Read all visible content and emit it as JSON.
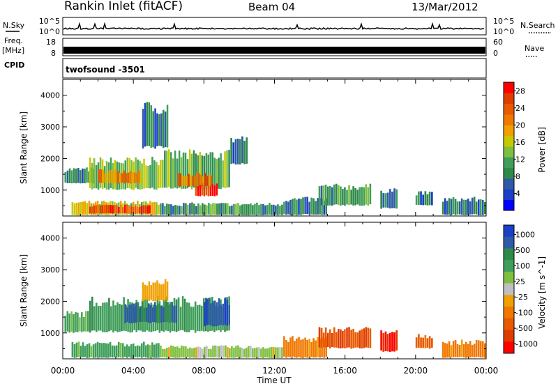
{
  "header": {
    "station": "Rankin Inlet (fitACF)",
    "beam": "Beam 04",
    "date": "13/Mar/2012"
  },
  "left_labels": {
    "nsky": "N.Sky",
    "freq": "Freq.",
    "mhz": "[MHz]",
    "cpid": "CPID"
  },
  "right_labels": {
    "nsearch": "N.Search",
    "nave": "Nave"
  },
  "cpid_text": "twofsound  -3501",
  "noise_panel": {
    "left_ticks": [
      "10^5",
      "10^0"
    ],
    "right_ticks": [
      "10^5",
      "10^0"
    ]
  },
  "freq_panel": {
    "left_ticks": [
      "18",
      "8"
    ],
    "right_ticks": [
      "60",
      "0"
    ]
  },
  "chart_data": [
    {
      "type": "heatmap",
      "name": "power",
      "xlabel": "Time UT",
      "ylabel": "Slant Range [km]",
      "xlim": [
        0,
        24
      ],
      "ylim": [
        180,
        4500
      ],
      "x_ticks": [
        "00:00",
        "04:00",
        "08:00",
        "12:00",
        "16:00",
        "20:00",
        "00:00"
      ],
      "y_ticks": [
        "1000",
        "2000",
        "3000",
        "4000"
      ],
      "colorbar": {
        "label": "Power [dB]",
        "ticks": [
          "4",
          "8",
          "12",
          "16",
          "20",
          "24",
          "28"
        ],
        "range": [
          0,
          30
        ],
        "colors": [
          "#0000ff",
          "#1a3fc8",
          "#2e5aa8",
          "#2f8a4a",
          "#3f9e5a",
          "#7fbf3f",
          "#c8c800",
          "#f0a000",
          "#f07800",
          "#e85a00",
          "#e03c00",
          "#ff0000"
        ]
      },
      "regions": [
        {
          "t0": 0.1,
          "t1": 1.8,
          "r0": 1200,
          "r1": 1650,
          "value": 8
        },
        {
          "t0": 1.5,
          "t1": 5.5,
          "r0": 1000,
          "r1": 1900,
          "value": 14
        },
        {
          "t0": 2.0,
          "t1": 4.5,
          "r0": 1200,
          "r1": 1600,
          "value": 20
        },
        {
          "t0": 5.5,
          "t1": 9.5,
          "r0": 1000,
          "r1": 2100,
          "value": 12
        },
        {
          "t0": 6.5,
          "t1": 8.5,
          "r0": 1100,
          "r1": 1500,
          "value": 22
        },
        {
          "t0": 7.5,
          "t1": 8.8,
          "r0": 800,
          "r1": 1150,
          "value": 28
        },
        {
          "t0": 0.5,
          "t1": 5.5,
          "r0": 200,
          "r1": 600,
          "value": 16
        },
        {
          "t0": 1.5,
          "t1": 5.0,
          "r0": 250,
          "r1": 500,
          "value": 26
        },
        {
          "t0": 5.5,
          "t1": 12.5,
          "r0": 200,
          "r1": 550,
          "value": 10
        },
        {
          "t0": 12.5,
          "t1": 15.0,
          "r0": 200,
          "r1": 700,
          "value": 8
        },
        {
          "t0": 14.5,
          "t1": 17.5,
          "r0": 500,
          "r1": 1100,
          "value": 10
        },
        {
          "t0": 18.0,
          "t1": 19.0,
          "r0": 400,
          "r1": 1000,
          "value": 8
        },
        {
          "t0": 20.0,
          "t1": 21.0,
          "r0": 500,
          "r1": 900,
          "value": 8
        },
        {
          "t0": 21.5,
          "t1": 24.0,
          "r0": 200,
          "r1": 700,
          "value": 8
        },
        {
          "t0": 4.5,
          "t1": 6.0,
          "r0": 2300,
          "r1": 3600,
          "value": 8
        },
        {
          "t0": 9.5,
          "t1": 10.5,
          "r0": 1800,
          "r1": 2600,
          "value": 6
        }
      ]
    },
    {
      "type": "heatmap",
      "name": "velocity",
      "xlabel": "Time UT",
      "ylabel": "Slant Range [km]",
      "xlim": [
        0,
        24
      ],
      "ylim": [
        180,
        4500
      ],
      "x_ticks": [
        "00:00",
        "04:00",
        "08:00",
        "12:00",
        "16:00",
        "20:00",
        "00:00"
      ],
      "y_ticks": [
        "1000",
        "2000",
        "3000",
        "4000"
      ],
      "colorbar": {
        "label": "Velocity [m s^-1]",
        "ticks": [
          "1000",
          "500",
          "100",
          "25",
          "-25",
          "-100",
          "-500",
          "-1000"
        ],
        "colors": [
          "#1a3fc8",
          "#2e5aa8",
          "#2f8a4a",
          "#3f9e5a",
          "#7fbf3f",
          "#c0c0c0",
          "#f0a000",
          "#f07800",
          "#e85a00",
          "#e03c00",
          "#ff0000"
        ]
      },
      "regions": [
        {
          "t0": 0.1,
          "t1": 1.5,
          "r0": 1000,
          "r1": 1600,
          "value": 120
        },
        {
          "t0": 1.5,
          "t1": 9.5,
          "r0": 1000,
          "r1": 2000,
          "value": 200
        },
        {
          "t0": 3.5,
          "t1": 6.5,
          "r0": 1300,
          "r1": 1900,
          "value": 600
        },
        {
          "t0": 8.0,
          "t1": 9.5,
          "r0": 1200,
          "r1": 2000,
          "value": 900
        },
        {
          "t0": 0.5,
          "t1": 5.5,
          "r0": 200,
          "r1": 650,
          "value": 150
        },
        {
          "t0": 5.5,
          "t1": 12.5,
          "r0": 200,
          "r1": 550,
          "value": 60
        },
        {
          "t0": 12.5,
          "t1": 15.0,
          "r0": 200,
          "r1": 800,
          "value": -60
        },
        {
          "t0": 14.5,
          "t1": 17.5,
          "r0": 500,
          "r1": 1100,
          "value": -300
        },
        {
          "t0": 18.0,
          "t1": 19.0,
          "r0": 400,
          "r1": 1000,
          "value": -600
        },
        {
          "t0": 20.0,
          "t1": 21.0,
          "r0": 500,
          "r1": 900,
          "value": -150
        },
        {
          "t0": 21.5,
          "t1": 24.0,
          "r0": 200,
          "r1": 700,
          "value": -60
        },
        {
          "t0": 4.5,
          "t1": 6.0,
          "r0": 2000,
          "r1": 2600,
          "value": 0
        }
      ]
    }
  ]
}
